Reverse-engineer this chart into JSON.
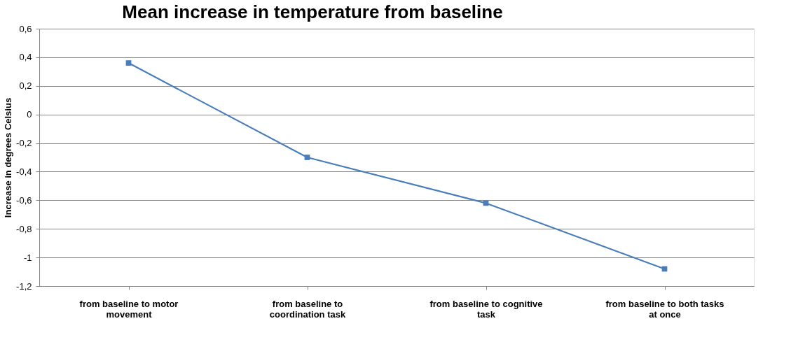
{
  "chart_data": {
    "type": "line",
    "title": "Mean increase in temperature from baseline",
    "ylabel": "Increase in degrees Celsius",
    "categories": [
      "from baseline to motor movement",
      "from baseline to coordination task",
      "from baseline to cognitive task",
      "from baseline to both tasks at once"
    ],
    "series": [
      {
        "color": "#4a7ebb",
        "values": [
          0.36,
          -0.3,
          -0.62,
          -1.08
        ]
      }
    ],
    "ylim": [
      -1.2,
      0.6
    ],
    "yticks": [
      {
        "value": -1.2,
        "label": "-1,2"
      },
      {
        "value": -1,
        "label": "-1"
      },
      {
        "value": -0.8,
        "label": "-0,8"
      },
      {
        "value": -0.6,
        "label": "-0,6"
      },
      {
        "value": -0.4,
        "label": "-0,4"
      },
      {
        "value": -0.2,
        "label": "-0,2"
      },
      {
        "value": 0,
        "label": "0"
      },
      {
        "value": 0.2,
        "label": "0,2"
      },
      {
        "value": 0.4,
        "label": "0,4"
      },
      {
        "value": 0.6,
        "label": "0,6"
      }
    ],
    "grid": "y",
    "marker": "square",
    "line_style": "solid"
  }
}
